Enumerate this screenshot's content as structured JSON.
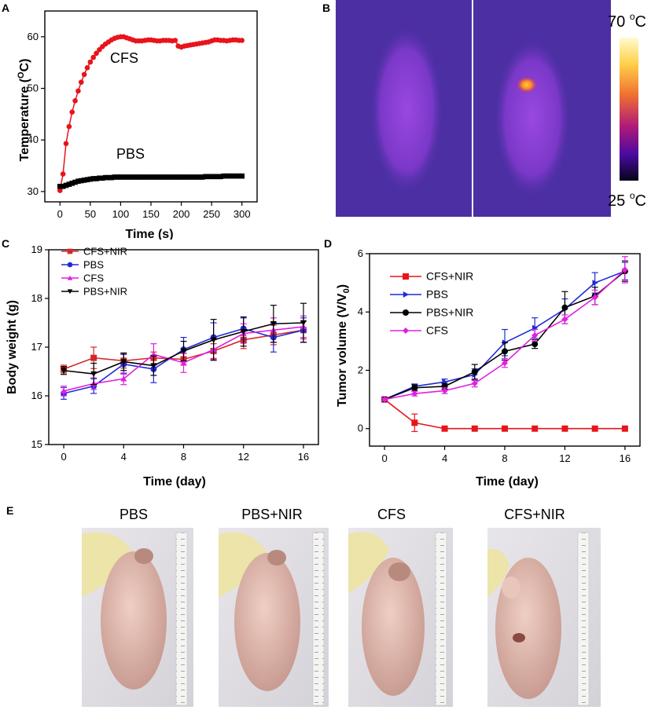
{
  "panels": {
    "a": "A",
    "b": "B",
    "c": "C",
    "d": "D",
    "e": "E"
  },
  "chart_data": [
    {
      "type": "scatter",
      "panel": "A",
      "title": "",
      "xlabel": "Time (s)",
      "ylabel": "Temperature (oC)",
      "ylabel_main": "Temperature (",
      "ylabel_sup": "O",
      "ylabel_end": "C)",
      "xlim": [
        -25,
        325
      ],
      "ylim": [
        28,
        65
      ],
      "xticks": [
        0,
        50,
        100,
        150,
        200,
        250,
        300
      ],
      "yticks": [
        30,
        40,
        50,
        60
      ],
      "annotations": [
        "CFS",
        "PBS"
      ],
      "series": [
        {
          "name": "CFS",
          "color": "#e8141b",
          "marker": "circle",
          "x": [
            0,
            5,
            10,
            15,
            20,
            25,
            30,
            35,
            40,
            45,
            50,
            55,
            60,
            65,
            70,
            75,
            80,
            85,
            90,
            95,
            100,
            105,
            110,
            115,
            120,
            125,
            130,
            135,
            140,
            145,
            150,
            155,
            160,
            165,
            170,
            175,
            180,
            185,
            190,
            195,
            200,
            205,
            210,
            215,
            220,
            225,
            230,
            235,
            240,
            245,
            250,
            255,
            260,
            265,
            270,
            275,
            280,
            285,
            290,
            295,
            300
          ],
          "y": [
            30.2,
            33.4,
            39.3,
            42.6,
            45.4,
            47.6,
            49.5,
            51.2,
            52.7,
            54.0,
            55.1,
            56.0,
            56.8,
            57.5,
            58.1,
            58.6,
            59.0,
            59.4,
            59.7,
            59.9,
            60.0,
            60.0,
            59.8,
            59.6,
            59.4,
            59.2,
            59.2,
            59.2,
            59.3,
            59.4,
            59.4,
            59.3,
            59.2,
            59.2,
            59.3,
            59.3,
            59.3,
            59.2,
            59.3,
            58.2,
            58.0,
            58.2,
            58.3,
            58.4,
            58.5,
            58.6,
            58.7,
            58.8,
            58.9,
            59.0,
            59.2,
            59.4,
            59.4,
            59.3,
            59.3,
            59.2,
            59.3,
            59.4,
            59.4,
            59.3,
            59.3
          ]
        },
        {
          "name": "PBS",
          "color": "#000000",
          "marker": "square",
          "x": [
            0,
            5,
            10,
            15,
            20,
            25,
            30,
            35,
            40,
            45,
            50,
            55,
            60,
            65,
            70,
            75,
            80,
            85,
            90,
            95,
            100,
            105,
            110,
            115,
            120,
            125,
            130,
            135,
            140,
            145,
            150,
            155,
            160,
            165,
            170,
            175,
            180,
            185,
            190,
            195,
            200,
            205,
            210,
            215,
            220,
            225,
            230,
            235,
            240,
            245,
            250,
            255,
            260,
            265,
            270,
            275,
            280,
            285,
            290,
            295,
            300
          ],
          "y": [
            31.0,
            31.0,
            31.2,
            31.4,
            31.6,
            31.8,
            32.0,
            32.1,
            32.2,
            32.3,
            32.4,
            32.5,
            32.5,
            32.6,
            32.6,
            32.7,
            32.7,
            32.7,
            32.8,
            32.8,
            32.8,
            32.8,
            32.8,
            32.8,
            32.8,
            32.8,
            32.8,
            32.8,
            32.8,
            32.8,
            32.8,
            32.8,
            32.8,
            32.8,
            32.8,
            32.8,
            32.8,
            32.8,
            32.8,
            32.8,
            32.8,
            32.8,
            32.8,
            32.8,
            32.8,
            32.8,
            32.8,
            32.8,
            32.9,
            32.9,
            32.9,
            32.9,
            32.9,
            32.9,
            33.0,
            33.0,
            33.0,
            33.0,
            33.0,
            33.0,
            33.0
          ]
        }
      ]
    },
    {
      "type": "line",
      "panel": "C",
      "title": "",
      "xlabel": "Time (day)",
      "ylabel": "Body weight (g)",
      "xlim": [
        -1,
        17
      ],
      "ylim": [
        15,
        19
      ],
      "xticks": [
        0,
        4,
        8,
        12,
        16
      ],
      "yticks": [
        15,
        16,
        17,
        18,
        19
      ],
      "legend_position": "top-left",
      "x": [
        0,
        2,
        4,
        6,
        8,
        10,
        12,
        14,
        16
      ],
      "series": [
        {
          "name": "CFS+NIR",
          "color": "#d62728",
          "marker": "square",
          "values": [
            16.55,
            16.78,
            16.72,
            16.78,
            16.75,
            16.92,
            17.15,
            17.25,
            17.35
          ],
          "errors": [
            0.08,
            0.22,
            0.15,
            0.12,
            0.12,
            0.15,
            0.18,
            0.2,
            0.18
          ]
        },
        {
          "name": "PBS",
          "color": "#1f2bd6",
          "marker": "circle",
          "values": [
            16.05,
            16.2,
            16.65,
            16.55,
            16.95,
            17.2,
            17.38,
            17.2,
            17.35
          ],
          "errors": [
            0.12,
            0.15,
            0.2,
            0.28,
            0.25,
            0.3,
            0.22,
            0.3,
            0.25
          ]
        },
        {
          "name": "CFS",
          "color": "#e020e0",
          "marker": "triangle-up",
          "values": [
            16.1,
            16.25,
            16.35,
            16.85,
            16.68,
            16.95,
            17.28,
            17.35,
            17.42
          ],
          "errors": [
            0.1,
            0.12,
            0.12,
            0.22,
            0.2,
            0.2,
            0.2,
            0.25,
            0.22
          ]
        },
        {
          "name": "PBS+NIR",
          "color": "#000000",
          "marker": "triangle-down",
          "values": [
            16.52,
            16.45,
            16.7,
            16.62,
            16.92,
            17.15,
            17.32,
            17.48,
            17.5
          ],
          "errors": [
            0.08,
            0.22,
            0.18,
            0.2,
            0.2,
            0.42,
            0.3,
            0.38,
            0.4
          ]
        }
      ]
    },
    {
      "type": "line",
      "panel": "D",
      "title": "",
      "xlabel": "Time (day)",
      "ylabel": "Tumor volume (V/V0)",
      "ylabel_main": "Tumor volume (V/V",
      "ylabel_sub": "0",
      "ylabel_end": ")",
      "xlim": [
        -1,
        17
      ],
      "ylim": [
        -0.6,
        6
      ],
      "xticks": [
        0,
        4,
        8,
        12,
        16
      ],
      "yticks": [
        0,
        2,
        4,
        6
      ],
      "legend_position": "top-left",
      "x": [
        0,
        2,
        4,
        6,
        8,
        10,
        12,
        14,
        16
      ],
      "series": [
        {
          "name": "CFS+NIR",
          "color": "#e8141b",
          "marker": "square",
          "values": [
            1.0,
            0.2,
            0.0,
            0.0,
            0.0,
            0.0,
            0.0,
            0.0,
            0.0
          ],
          "errors": [
            0.05,
            0.3,
            0.05,
            0,
            0,
            0,
            0,
            0,
            0
          ]
        },
        {
          "name": "PBS",
          "color": "#1f2bd6",
          "marker": "triangle-right",
          "values": [
            1.0,
            1.45,
            1.6,
            1.85,
            2.95,
            3.45,
            4.1,
            5.0,
            5.4
          ],
          "errors": [
            0.05,
            0.08,
            0.1,
            0.2,
            0.45,
            0.35,
            0.35,
            0.35,
            0.3
          ]
        },
        {
          "name": "PBS+NIR",
          "color": "#000000",
          "marker": "circle",
          "values": [
            1.0,
            1.4,
            1.45,
            1.95,
            2.65,
            2.9,
            4.15,
            4.55,
            5.4
          ],
          "errors": [
            0.05,
            0.1,
            0.1,
            0.25,
            0.3,
            0.15,
            0.55,
            0.3,
            0.35
          ]
        },
        {
          "name": "CFS",
          "color": "#e020e0",
          "marker": "diamond",
          "values": [
            1.0,
            1.2,
            1.3,
            1.55,
            2.25,
            3.2,
            3.75,
            4.5,
            5.45
          ],
          "errors": [
            0.05,
            0.08,
            0.1,
            0.12,
            0.15,
            0.2,
            0.15,
            0.25,
            0.45
          ]
        }
      ]
    }
  ],
  "thermal": {
    "scale_max": "70 oC",
    "scale_max_num": "70 ",
    "scale_min": "25 oC",
    "scale_min_num": "25 ",
    "unit_sup": "o",
    "unit": "C",
    "colors": {
      "bg": "#4a2ea0",
      "body": "#8a3ed4",
      "hot": "#ffb020"
    }
  },
  "photos": {
    "titles": [
      "PBS",
      "PBS+NIR",
      "CFS",
      "CFS+NIR"
    ]
  }
}
